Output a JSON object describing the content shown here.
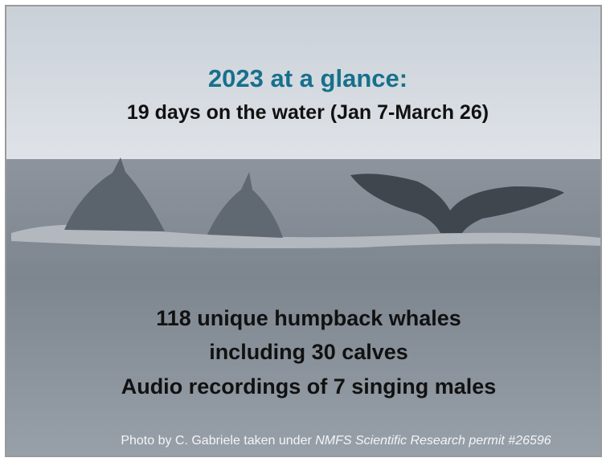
{
  "slide": {
    "title": "2023 at a glance:",
    "subtitle": "19 days on the water (Jan 7-March 26)",
    "stats": [
      "118 unique humpback whales",
      "including 30 calves",
      "Audio recordings of 7 singing males"
    ],
    "credit": {
      "text": "Photo by C. Gabriele taken under ",
      "permit": "NMFS Scientific Research permit #26596"
    }
  }
}
